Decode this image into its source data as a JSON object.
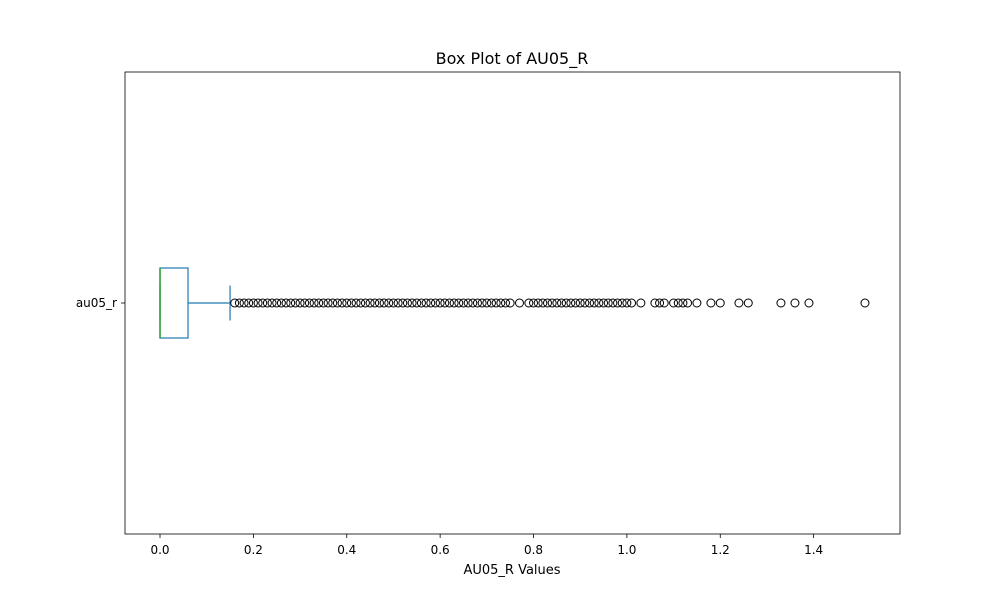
{
  "chart_data": {
    "type": "box",
    "orientation": "horizontal",
    "title": "Box Plot of AU05_R",
    "xlabel": "AU05_R Values",
    "ylabel": "",
    "xlim": [
      -0.075,
      1.585
    ],
    "xticks": [
      0.0,
      0.2,
      0.4,
      0.6,
      0.8,
      1.0,
      1.2,
      1.4
    ],
    "xtick_labels": [
      "0.0",
      "0.2",
      "0.4",
      "0.6",
      "0.8",
      "1.0",
      "1.2",
      "1.4"
    ],
    "grid": false,
    "categories": [
      "au05_r"
    ],
    "boxes": [
      {
        "label": "au05_r",
        "whisker_low": 0.0,
        "q1": 0.0,
        "median": 0.0,
        "q3": 0.06,
        "whisker_high": 0.15,
        "outliers": [
          0.16,
          0.17,
          0.18,
          0.19,
          0.2,
          0.21,
          0.22,
          0.23,
          0.24,
          0.25,
          0.26,
          0.27,
          0.28,
          0.29,
          0.3,
          0.31,
          0.32,
          0.33,
          0.34,
          0.35,
          0.36,
          0.37,
          0.38,
          0.39,
          0.4,
          0.41,
          0.42,
          0.43,
          0.44,
          0.45,
          0.46,
          0.47,
          0.48,
          0.49,
          0.5,
          0.51,
          0.52,
          0.53,
          0.54,
          0.55,
          0.56,
          0.57,
          0.58,
          0.59,
          0.6,
          0.61,
          0.62,
          0.63,
          0.64,
          0.65,
          0.66,
          0.67,
          0.68,
          0.69,
          0.7,
          0.71,
          0.72,
          0.73,
          0.74,
          0.75,
          0.77,
          0.79,
          0.8,
          0.81,
          0.82,
          0.83,
          0.84,
          0.85,
          0.86,
          0.87,
          0.88,
          0.89,
          0.9,
          0.91,
          0.92,
          0.93,
          0.94,
          0.95,
          0.96,
          0.97,
          0.98,
          0.99,
          1.0,
          1.01,
          1.03,
          1.06,
          1.07,
          1.08,
          1.1,
          1.11,
          1.12,
          1.13,
          1.15,
          1.18,
          1.2,
          1.24,
          1.26,
          1.33,
          1.36,
          1.39,
          1.51
        ]
      }
    ],
    "colors": {
      "box": "#1f77b4",
      "median": "#2ca02c",
      "outlier": "#000000"
    }
  }
}
